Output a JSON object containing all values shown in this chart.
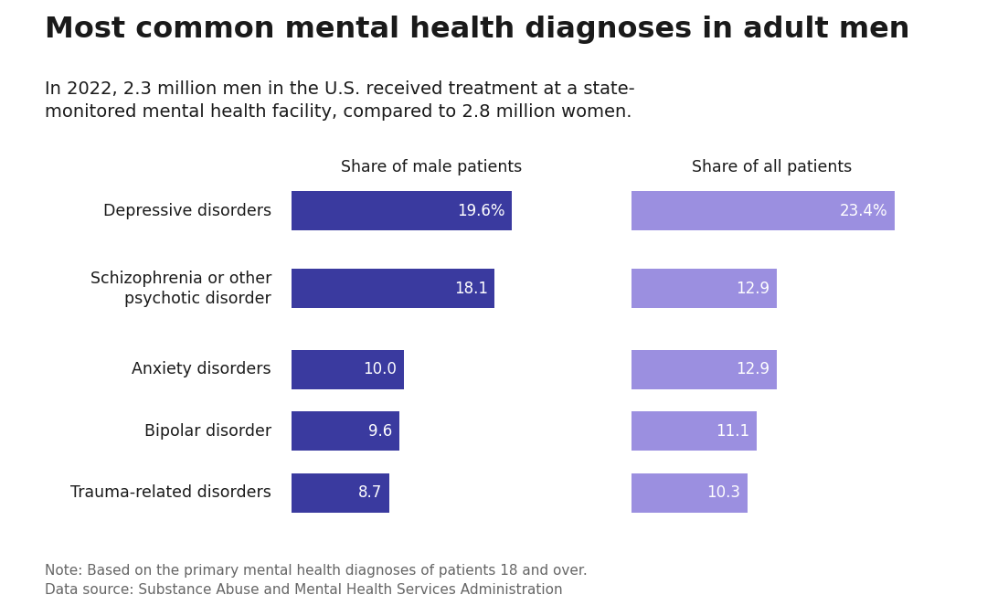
{
  "title": "Most common mental health diagnoses in adult men",
  "subtitle": "In 2022, 2.3 million men in the U.S. received treatment at a state-\nmonitored mental health facility, compared to 2.8 million women.",
  "note": "Note: Based on the primary mental health diagnoses of patients 18 and over.\nData source: Substance Abuse and Mental Health Services Administration",
  "categories": [
    "Depressive disorders",
    "Schizophrenia or other\npsychotic disorder",
    "Anxiety disorders",
    "Bipolar disorder",
    "Trauma-related disorders"
  ],
  "male_values": [
    19.6,
    18.1,
    10.0,
    9.6,
    8.7
  ],
  "all_values": [
    23.4,
    12.9,
    12.9,
    11.1,
    10.3
  ],
  "male_labels": [
    "19.6%",
    "18.1",
    "10.0",
    "9.6",
    "8.7"
  ],
  "all_labels": [
    "23.4%",
    "12.9",
    "12.9",
    "11.1",
    "10.3"
  ],
  "male_color": "#3a3a9f",
  "all_color": "#9b8fe0",
  "col1_header": "Share of male patients",
  "col2_header": "Share of all patients",
  "background_color": "#ffffff",
  "text_color": "#1a1a1a",
  "note_color": "#666666",
  "max_value": 25.0
}
